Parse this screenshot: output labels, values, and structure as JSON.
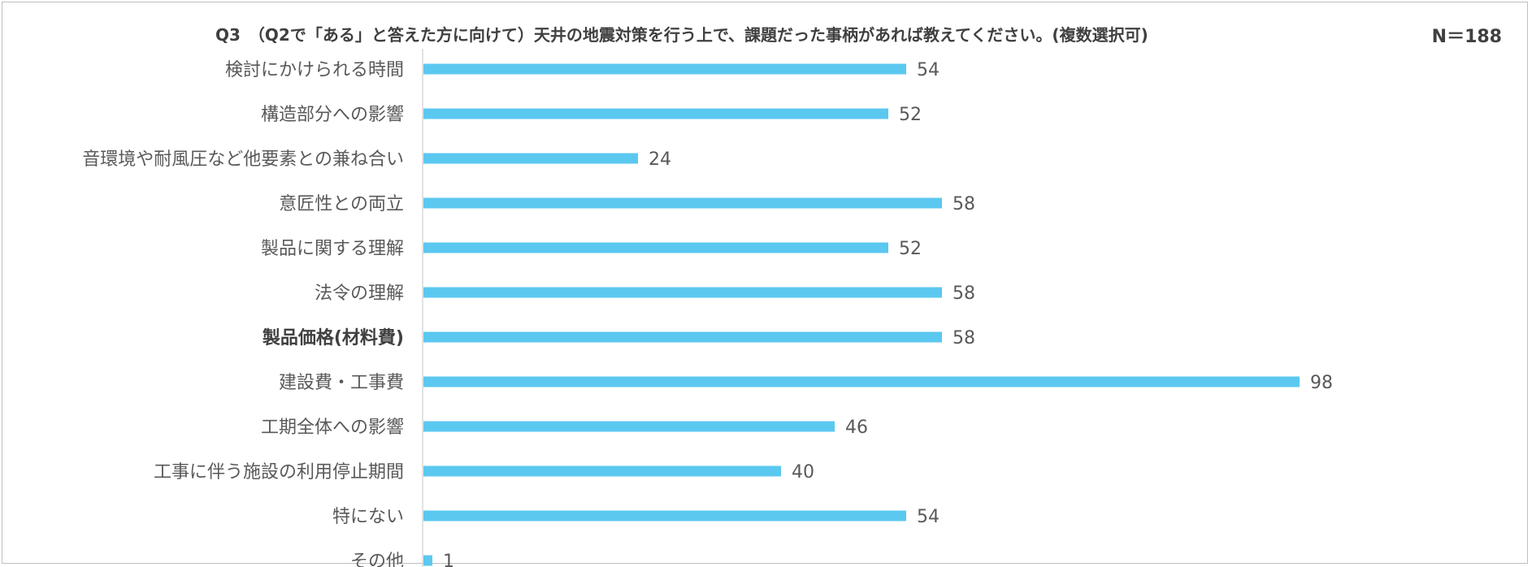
{
  "chart_data": {
    "type": "bar",
    "orientation": "horizontal",
    "title": "Q3　（Q2で「ある」と答えた方に向けて）天井の地震対策を行う上で、課題だった事柄があれば教えてください。(複数選択可)",
    "sample_size_label": "N＝188",
    "categories": [
      "検討にかけられる時間",
      "構造部分への影響",
      "音環境や耐風圧など他要素との兼ね合い",
      "意匠性との両立",
      "製品に関する理解",
      "法令の理解",
      "製品価格(材料費)",
      "建設費・工事費",
      "工期全体への影響",
      "工事に伴う施設の利用停止期間",
      "特にない",
      "その他"
    ],
    "values": [
      54,
      52,
      24,
      58,
      52,
      58,
      58,
      98,
      46,
      40,
      54,
      1
    ],
    "bold_categories": [
      "製品価格(材料費)"
    ],
    "xlim": [
      0,
      100
    ],
    "grid": false,
    "legend": "none",
    "bar_color": "#5bc8f0",
    "axis_color": "#d9d9d9"
  }
}
